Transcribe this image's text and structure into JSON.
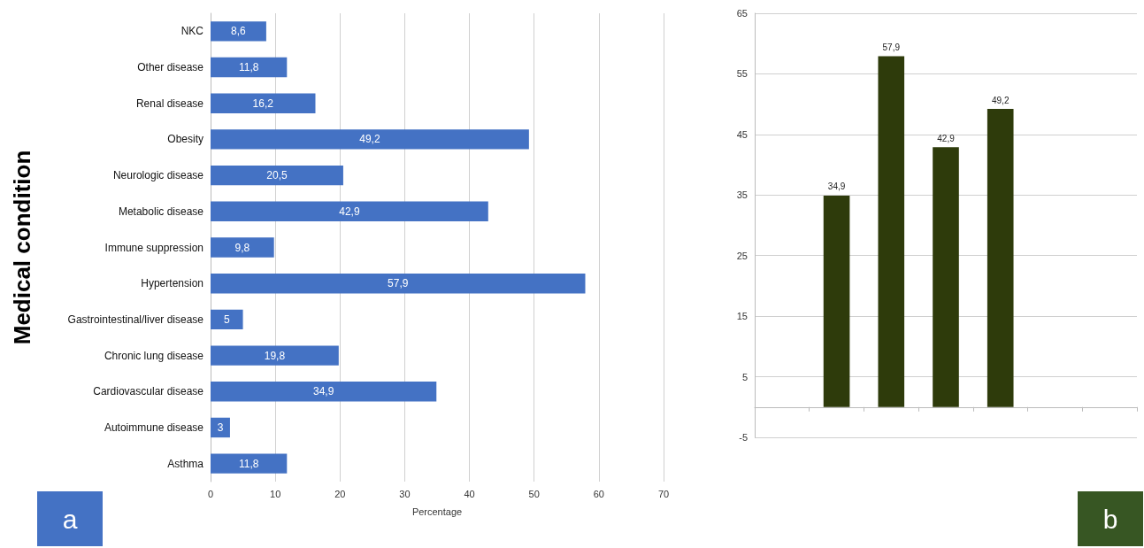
{
  "chart_data": [
    {
      "type": "bar",
      "orientation": "horizontal",
      "ylabel": "Medical condition",
      "xlabel": "Percentage",
      "categories": [
        "NKC",
        "Other disease",
        "Renal disease",
        "Obesity",
        "Neurologic disease",
        "Metabolic disease",
        "Immune suppression",
        "Hypertension",
        "Gastrointestinal/liver disease",
        "Chronic lung disease",
        "Cardiovascular disease",
        "Autoimmune disease",
        "Asthma"
      ],
      "values": [
        8.6,
        11.8,
        16.2,
        49.2,
        20.5,
        42.9,
        9.8,
        57.9,
        5,
        19.8,
        34.9,
        3,
        11.8
      ],
      "value_labels": [
        "8,6",
        "11,8",
        "16,2",
        "49,2",
        "20,5",
        "42,9",
        "9,8",
        "57,9",
        "5",
        "19,8",
        "34,9",
        "3",
        "11,8"
      ],
      "color": "#4472c4",
      "xlim": [
        0,
        70
      ],
      "xticks": [
        0,
        10,
        20,
        30,
        40,
        50,
        60,
        70
      ],
      "grid": "x",
      "annotations": [
        "a"
      ]
    },
    {
      "type": "bar",
      "categories": [
        null,
        null,
        null,
        null,
        null,
        null,
        null
      ],
      "values": [
        null,
        34.9,
        57.9,
        42.9,
        49.2,
        null,
        null
      ],
      "value_labels": [
        null,
        "34,9",
        "57,9",
        "42,9",
        "49,2",
        null,
        null
      ],
      "color": "#2e3b0b",
      "ylim": [
        -5,
        65
      ],
      "yticks": [
        -5,
        5,
        15,
        25,
        35,
        45,
        55,
        65
      ],
      "grid": "y",
      "annotations": [
        "b"
      ]
    }
  ]
}
